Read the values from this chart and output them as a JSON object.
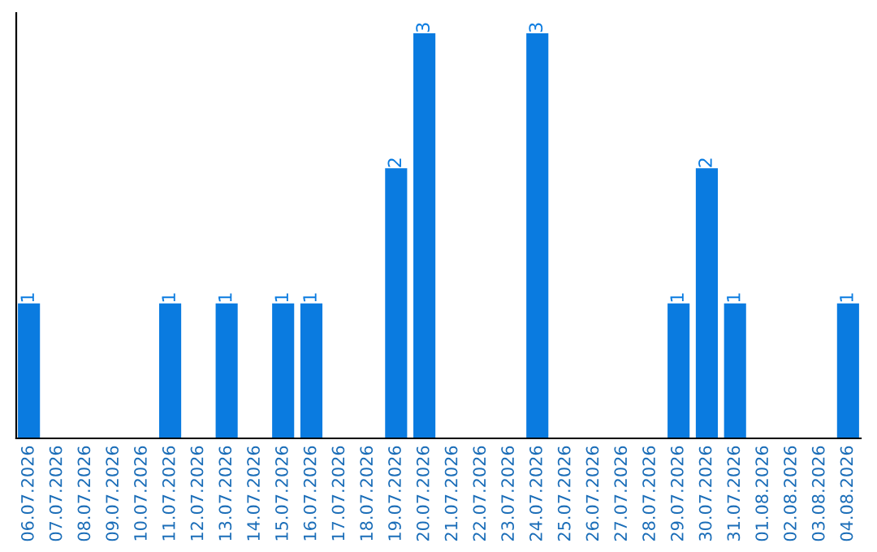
{
  "chart_data": {
    "type": "bar",
    "categories": [
      "06.07.2026",
      "07.07.2026",
      "08.07.2026",
      "09.07.2026",
      "10.07.2026",
      "11.07.2026",
      "12.07.2026",
      "13.07.2026",
      "14.07.2026",
      "15.07.2026",
      "16.07.2026",
      "17.07.2026",
      "18.07.2026",
      "19.07.2026",
      "20.07.2026",
      "21.07.2026",
      "22.07.2026",
      "23.07.2026",
      "24.07.2026",
      "25.07.2026",
      "26.07.2026",
      "27.07.2026",
      "28.07.2026",
      "29.07.2026",
      "30.07.2026",
      "31.07.2026",
      "01.08.2026",
      "02.08.2026",
      "03.08.2026",
      "04.08.2026"
    ],
    "values": [
      1,
      0,
      0,
      0,
      0,
      1,
      0,
      1,
      0,
      1,
      1,
      0,
      0,
      2,
      3,
      0,
      0,
      0,
      3,
      0,
      0,
      0,
      0,
      1,
      2,
      1,
      0,
      0,
      0,
      1
    ],
    "value_labels": [
      "1",
      null,
      null,
      null,
      null,
      "1",
      null,
      "1",
      null,
      "1",
      "1",
      null,
      null,
      "2",
      "3",
      null,
      null,
      null,
      "3",
      null,
      null,
      null,
      null,
      "1",
      "2",
      "1",
      null,
      null,
      null,
      "1"
    ],
    "color": "#0a7be0",
    "grid": false,
    "legend": false
  }
}
